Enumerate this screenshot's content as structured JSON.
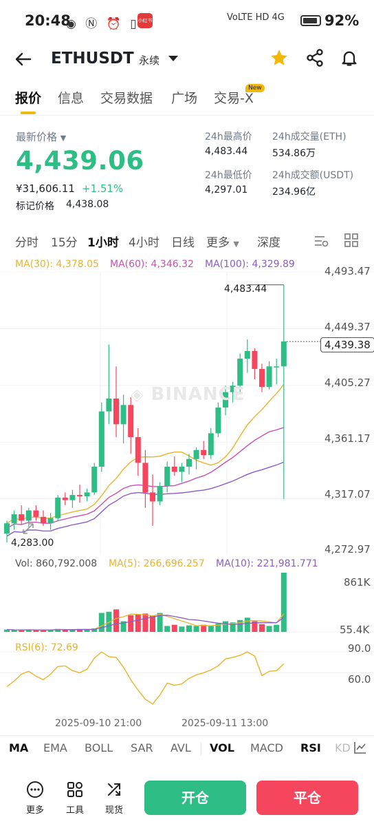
{
  "status": {
    "time": "20:48",
    "left_icons": "◉ Ⓝ ⏰ ▯",
    "badge": "小红书",
    "network": "VoLTE HD 4G",
    "battery_pct": "92%"
  },
  "header": {
    "pair": "ETHUSDT",
    "contract_type": "永续",
    "icons": [
      "back-icon",
      "star-icon",
      "share-icon",
      "bell-icon"
    ]
  },
  "tabs": {
    "items": [
      "报价",
      "信息",
      "交易数据",
      "广场",
      "交易-X"
    ],
    "new_badge": "New"
  },
  "ticker": {
    "last_price_label": "最新价格",
    "last_price": "4,439.06",
    "cny_price": "¥31,606.11",
    "change_pct": "+1.51%",
    "mark_label": "标记价格",
    "mark_price": "4,438.08",
    "high_label": "24h最高价",
    "high": "4,483.44",
    "low_label": "24h最低价",
    "low": "4,297.01",
    "vol_eth_label": "24h成交量(ETH)",
    "vol_eth": "534.86万",
    "vol_usdt_label": "24h成交额(USDT)",
    "vol_usdt": "234.96亿"
  },
  "periods": [
    "分时",
    "15分",
    "1小时",
    "4小时",
    "日线",
    "更多",
    "深度"
  ],
  "ma": {
    "ma30": "MA(30): 4,378.05",
    "ma60": "MA(60): 4,346.32",
    "ma100": "MA(100): 4,329.89",
    "vol": "Vol: 860,792.008",
    "ma5": "MA(5): 266,696.257",
    "ma10": "MA(10): 221,981.771",
    "rsi": "RSI(6): 72.69"
  },
  "price_axis": [
    "4,493.47",
    "4,449.37",
    "4,405.27",
    "4,361.17",
    "4,317.07",
    "4,272.97"
  ],
  "high_marker": "4,483.44",
  "low_marker": "4,283.00",
  "current_price_tag": "4,439.38",
  "vol_axis": [
    "861K",
    "55.4K"
  ],
  "rsi_axis": [
    "90.0",
    "60.0"
  ],
  "time_axis": [
    "2025-09-10 21:00",
    "2025-09-11 13:00"
  ],
  "watermark": "BINANCE",
  "indicators": [
    "MA",
    "EMA",
    "BOLL",
    "SAR",
    "AVL",
    "VOL",
    "MACD",
    "RSI",
    "KD"
  ],
  "footer": {
    "more": "更多",
    "tools": "工具",
    "spot": "现货",
    "open": "开仓",
    "close": "平仓"
  },
  "colors": {
    "up": "#2ebd85",
    "down": "#f6465d",
    "accent": "#f0b90b",
    "ma30": "#e7b52c",
    "ma60": "#c94fb0",
    "ma100": "#8a5cc8"
  },
  "chart_data": {
    "type": "candlestick",
    "ylim": [
      4272.97,
      4493.47
    ],
    "candles": [
      {
        "o": 4290,
        "h": 4300,
        "l": 4283,
        "c": 4298
      },
      {
        "o": 4298,
        "h": 4308,
        "l": 4293,
        "c": 4305
      },
      {
        "o": 4305,
        "h": 4312,
        "l": 4297,
        "c": 4300
      },
      {
        "o": 4300,
        "h": 4310,
        "l": 4295,
        "c": 4308
      },
      {
        "o": 4308,
        "h": 4312,
        "l": 4300,
        "c": 4303
      },
      {
        "o": 4303,
        "h": 4308,
        "l": 4296,
        "c": 4298
      },
      {
        "o": 4298,
        "h": 4306,
        "l": 4293,
        "c": 4302
      },
      {
        "o": 4302,
        "h": 4320,
        "l": 4300,
        "c": 4318
      },
      {
        "o": 4318,
        "h": 4322,
        "l": 4312,
        "c": 4316
      },
      {
        "o": 4316,
        "h": 4324,
        "l": 4310,
        "c": 4320
      },
      {
        "o": 4320,
        "h": 4328,
        "l": 4314,
        "c": 4319
      },
      {
        "o": 4319,
        "h": 4325,
        "l": 4315,
        "c": 4322
      },
      {
        "o": 4322,
        "h": 4345,
        "l": 4320,
        "c": 4342
      },
      {
        "o": 4342,
        "h": 4392,
        "l": 4338,
        "c": 4385
      },
      {
        "o": 4385,
        "h": 4437,
        "l": 4375,
        "c": 4395
      },
      {
        "o": 4395,
        "h": 4420,
        "l": 4365,
        "c": 4375
      },
      {
        "o": 4375,
        "h": 4398,
        "l": 4360,
        "c": 4390
      },
      {
        "o": 4390,
        "h": 4396,
        "l": 4352,
        "c": 4365
      },
      {
        "o": 4365,
        "h": 4372,
        "l": 4335,
        "c": 4345
      },
      {
        "o": 4345,
        "h": 4355,
        "l": 4310,
        "c": 4322
      },
      {
        "o": 4322,
        "h": 4336,
        "l": 4296,
        "c": 4315
      },
      {
        "o": 4315,
        "h": 4330,
        "l": 4312,
        "c": 4327
      },
      {
        "o": 4327,
        "h": 4346,
        "l": 4322,
        "c": 4342
      },
      {
        "o": 4342,
        "h": 4350,
        "l": 4335,
        "c": 4338
      },
      {
        "o": 4338,
        "h": 4345,
        "l": 4330,
        "c": 4342
      },
      {
        "o": 4342,
        "h": 4352,
        "l": 4336,
        "c": 4348
      },
      {
        "o": 4348,
        "h": 4357,
        "l": 4340,
        "c": 4355
      },
      {
        "o": 4355,
        "h": 4362,
        "l": 4348,
        "c": 4351
      },
      {
        "o": 4351,
        "h": 4372,
        "l": 4348,
        "c": 4368
      },
      {
        "o": 4368,
        "h": 4392,
        "l": 4365,
        "c": 4388
      },
      {
        "o": 4388,
        "h": 4405,
        "l": 4382,
        "c": 4400
      },
      {
        "o": 4400,
        "h": 4408,
        "l": 4392,
        "c": 4405
      },
      {
        "o": 4405,
        "h": 4430,
        "l": 4400,
        "c": 4426
      },
      {
        "o": 4426,
        "h": 4441,
        "l": 4415,
        "c": 4432
      },
      {
        "o": 4432,
        "h": 4434,
        "l": 4410,
        "c": 4418
      },
      {
        "o": 4418,
        "h": 4422,
        "l": 4400,
        "c": 4404
      },
      {
        "o": 4404,
        "h": 4424,
        "l": 4402,
        "c": 4420
      },
      {
        "o": 4420,
        "h": 4426,
        "l": 4406,
        "c": 4420
      },
      {
        "o": 4420,
        "h": 4483.44,
        "l": 4317,
        "c": 4439.38
      }
    ],
    "volume": [
      0.04,
      0.03,
      0.03,
      0.04,
      0.03,
      0.03,
      0.04,
      0.05,
      0.04,
      0.04,
      0.05,
      0.04,
      0.06,
      0.32,
      0.34,
      0.38,
      0.18,
      0.28,
      0.3,
      0.31,
      0.28,
      0.32,
      0.1,
      0.12,
      0.09,
      0.11,
      0.1,
      0.12,
      0.1,
      0.14,
      0.18,
      0.16,
      0.2,
      0.24,
      0.18,
      0.13,
      0.1,
      0.12,
      1.0
    ],
    "rsi": [
      40,
      48,
      58,
      62,
      55,
      50,
      58,
      69,
      70,
      63,
      60,
      65,
      81,
      90,
      83,
      82,
      68,
      50,
      35,
      22,
      15,
      28,
      45,
      42,
      44,
      52,
      57,
      60,
      64,
      70,
      80,
      82,
      85,
      90,
      84,
      56,
      62,
      63,
      72.69
    ]
  }
}
